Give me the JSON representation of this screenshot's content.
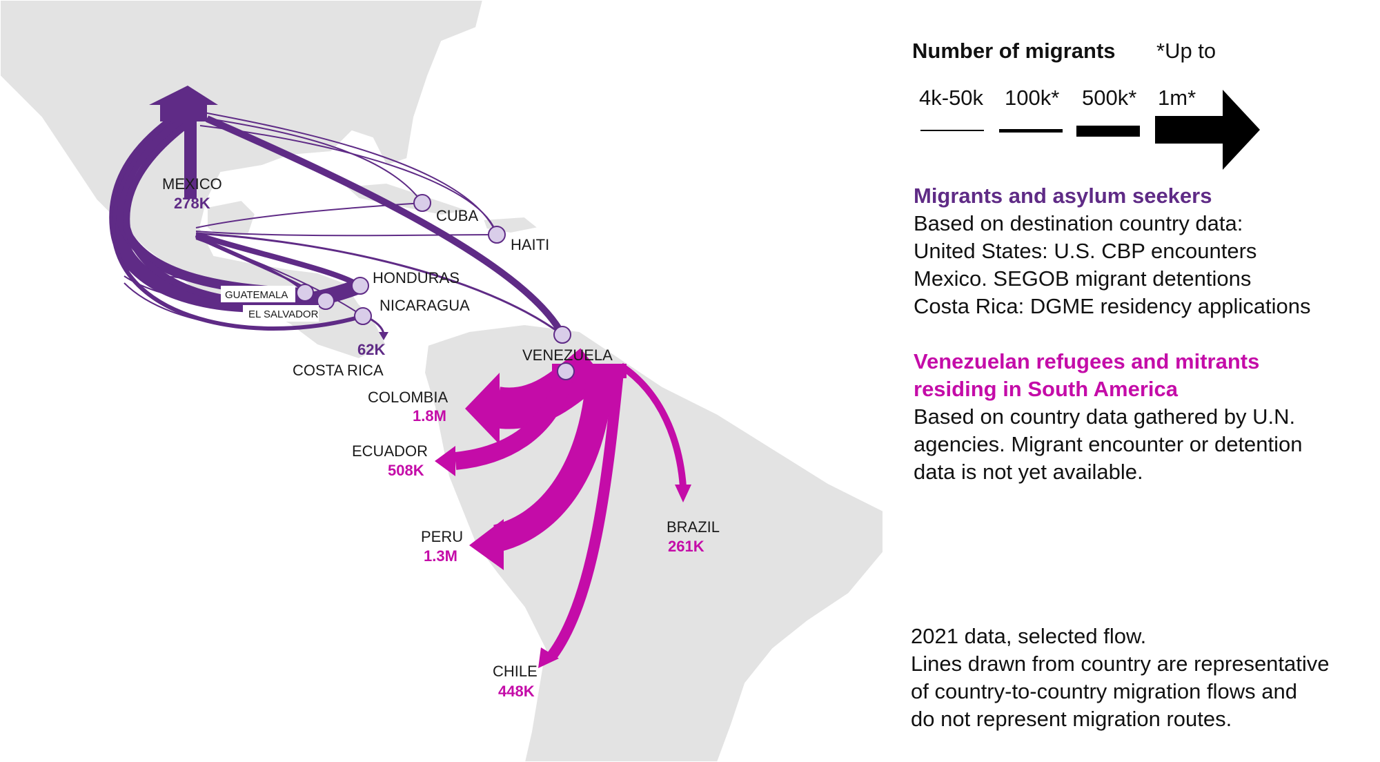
{
  "legend": {
    "title": "Number of migrants",
    "note": "*Up to",
    "scale": [
      "4k-50k",
      "100k*",
      "500k*",
      "1m*"
    ]
  },
  "section_asylum": {
    "heading": "Migrants and asylum seekers",
    "lines": [
      "Based on destination country data:",
      "United States: U.S. CBP encounters",
      "Mexico. SEGOB migrant detentions",
      "Costa Rica: DGME residency applications"
    ]
  },
  "section_venezuela": {
    "heading_lines": [
      "Venezuelan refugees and mitrants",
      "residing in South America"
    ],
    "lines": [
      "Based on country data gathered by U.N.",
      "agencies. Migrant encounter or detention",
      "data is not yet available."
    ]
  },
  "footnote": [
    "2021 data, selected flow.",
    "Lines drawn from country are representative",
    "of country-to-country migration flows and",
    "do not represent migration routes."
  ],
  "places": {
    "mexico": {
      "name": "MEXICO",
      "value": "278K"
    },
    "cuba": {
      "name": "CUBA"
    },
    "haiti": {
      "name": "HAITI"
    },
    "honduras": {
      "name": "HONDURAS"
    },
    "guatemala": {
      "name": "GUATEMALA"
    },
    "el_salvador": {
      "name": "EL SALVADOR"
    },
    "nicaragua": {
      "name": "NICARAGUA"
    },
    "costa_rica": {
      "name": "COSTA RICA",
      "value": "62K"
    },
    "venezuela": {
      "name": "VENEZUELA"
    },
    "colombia": {
      "name": "COLOMBIA",
      "value": "1.8M"
    },
    "ecuador": {
      "name": "ECUADOR",
      "value": "508K"
    },
    "peru": {
      "name": "PERU",
      "value": "1.3M"
    },
    "brazil": {
      "name": "BRAZIL",
      "value": "261K"
    },
    "chile": {
      "name": "CHILE",
      "value": "448K"
    }
  },
  "colors": {
    "asylum_flow": "#5f2b86",
    "venezuela_flow": "#c40ca8",
    "land": "#e3e3e3",
    "node_fill": "#d9cde9"
  }
}
